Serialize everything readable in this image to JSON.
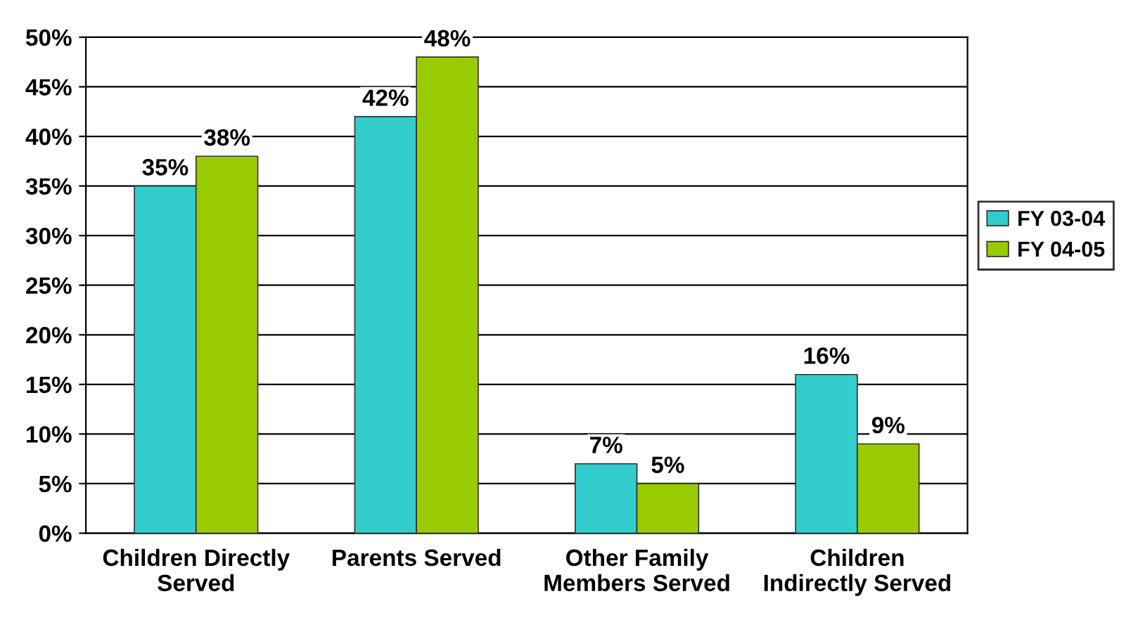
{
  "chart_data": {
    "type": "bar",
    "categories": [
      "Children Directly\nServed",
      "Parents Served",
      "Other Family\nMembers Served",
      "Children\nIndirectly Served"
    ],
    "series": [
      {
        "name": "FY 03-04",
        "color": "#33cccc",
        "values": [
          35,
          42,
          7,
          16
        ],
        "value_labels": [
          "35%",
          "42%",
          "7%",
          "16%"
        ]
      },
      {
        "name": "FY 04-05",
        "color": "#99cc00",
        "values": [
          38,
          48,
          5,
          9
        ],
        "value_labels": [
          "38%",
          "48%",
          "5%",
          "9%"
        ]
      }
    ],
    "ylim": [
      0,
      50
    ],
    "yticks": [
      {
        "value": 0,
        "label": "0%"
      },
      {
        "value": 5,
        "label": "5%"
      },
      {
        "value": 10,
        "label": "10%"
      },
      {
        "value": 15,
        "label": "15%"
      },
      {
        "value": 20,
        "label": "20%"
      },
      {
        "value": 25,
        "label": "25%"
      },
      {
        "value": 30,
        "label": "30%"
      },
      {
        "value": 35,
        "label": "35%"
      },
      {
        "value": 40,
        "label": "40%"
      },
      {
        "value": 45,
        "label": "45%"
      },
      {
        "value": 50,
        "label": "50%"
      }
    ],
    "grid": "y",
    "legend": "right"
  }
}
